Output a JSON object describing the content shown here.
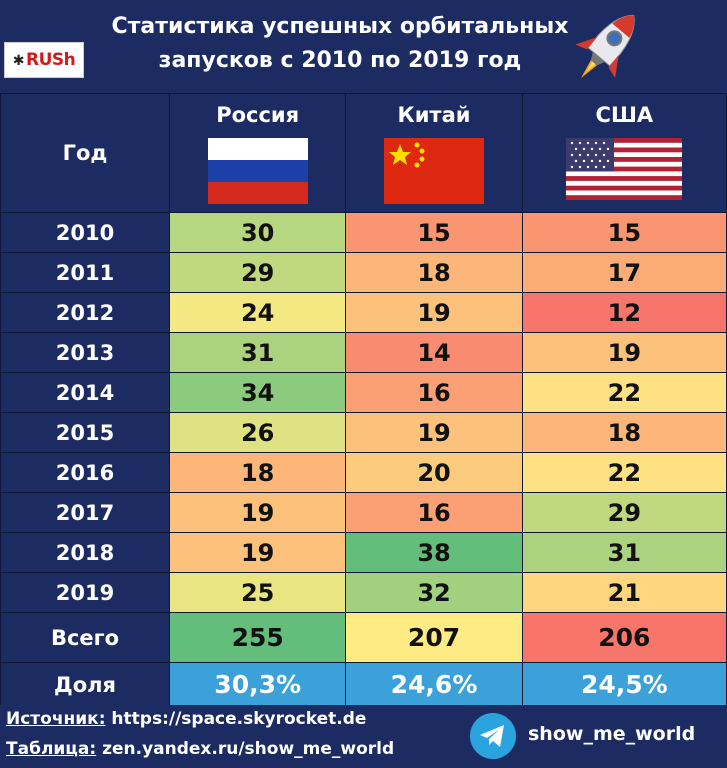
{
  "title_line1": "Статистика успешных орбитальных",
  "title_line2": "запусков с 2010 по 2019 год",
  "logo_text": "RUSh",
  "header": {
    "year": "Год"
  },
  "colors": {
    "header_bg": "#1c2c62",
    "share_bg": "#3ba1d8",
    "scale_low": "#f8756b",
    "scale_mid": "#ffeb84",
    "scale_high": "#63be7b"
  },
  "icons": {
    "rocket": "rocket-icon",
    "telegram": "telegram-icon"
  },
  "chart_data": {
    "type": "table",
    "title": "Статистика успешных орбитальных запусков с 2010 по 2019 год",
    "columns": [
      "Год",
      "Россия",
      "Китай",
      "США"
    ],
    "countries": [
      "Россия",
      "Китай",
      "США"
    ],
    "flags": [
      "russia-flag",
      "china-flag",
      "usa-flag"
    ],
    "years": [
      "2010",
      "2011",
      "2012",
      "2013",
      "2014",
      "2015",
      "2016",
      "2017",
      "2018",
      "2019"
    ],
    "series": [
      {
        "name": "Россия",
        "values": [
          30,
          29,
          24,
          31,
          34,
          26,
          18,
          19,
          19,
          25
        ]
      },
      {
        "name": "Китай",
        "values": [
          15,
          18,
          19,
          14,
          16,
          19,
          20,
          16,
          38,
          32
        ]
      },
      {
        "name": "США",
        "values": [
          15,
          17,
          12,
          19,
          22,
          18,
          22,
          29,
          31,
          21
        ]
      }
    ],
    "total_label": "Всего",
    "totals": [
      255,
      207,
      206
    ],
    "share_label": "Доля",
    "shares": [
      "30,3%",
      "24,6%",
      "24,5%"
    ]
  },
  "footer": {
    "source_label": "Источник:",
    "source_value": " https://space.skyrocket.de",
    "table_label": "Таблица:",
    "table_value": " zen.yandex.ru/show_me_world",
    "channel": "show_me_world"
  }
}
